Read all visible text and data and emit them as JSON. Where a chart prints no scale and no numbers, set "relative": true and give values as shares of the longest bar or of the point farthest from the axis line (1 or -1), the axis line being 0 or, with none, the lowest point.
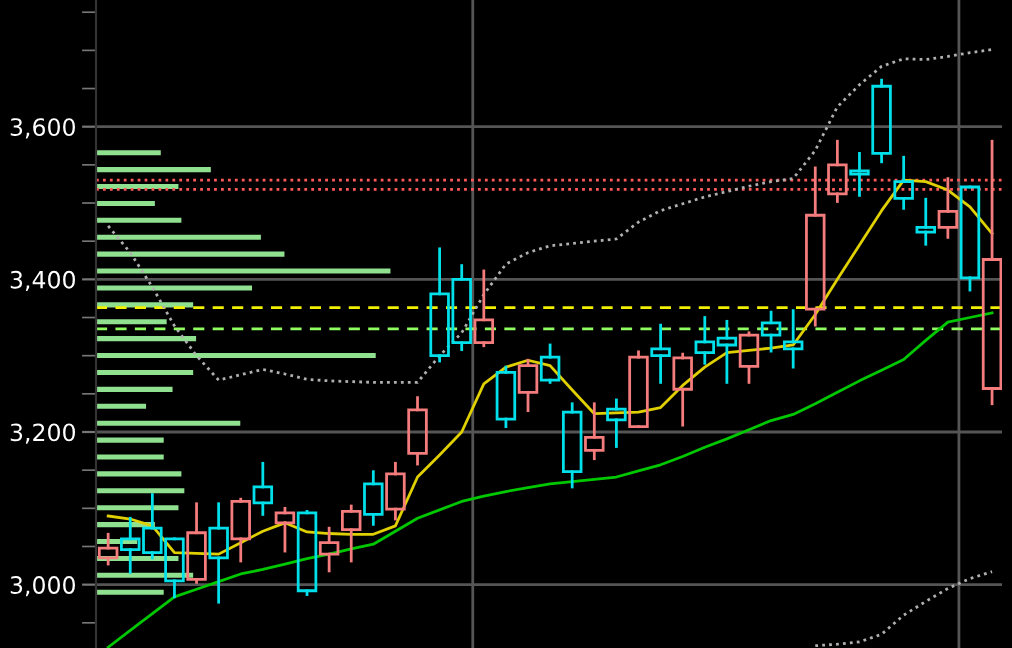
{
  "chart_data": [
    {
      "type": "candlestick",
      "categories": [
        null,
        null,
        null,
        null,
        null,
        null,
        null,
        null,
        null,
        null,
        null,
        null,
        null,
        null,
        null,
        null,
        null,
        null,
        null,
        null,
        null,
        null,
        null,
        null,
        null,
        null,
        null,
        null,
        null,
        null,
        null,
        null,
        null,
        null,
        null,
        null,
        null,
        null,
        null,
        null,
        null
      ],
      "ohlc": [
        [
          3035,
          3066,
          3027,
          3048
        ],
        [
          3060,
          3087,
          3016,
          3046
        ],
        [
          3074,
          3118,
          3035,
          3042
        ],
        [
          3060,
          3060,
          2984,
          3005
        ],
        [
          3007,
          3106,
          3003,
          3068
        ],
        [
          3074,
          3106,
          2977,
          3035
        ],
        [
          3060,
          3112,
          3031,
          3109
        ],
        [
          3128,
          3159,
          3092,
          3107
        ],
        [
          3081,
          3100,
          3044,
          3094
        ],
        [
          3094,
          3096,
          2987,
          2992
        ],
        [
          3040,
          3074,
          3018,
          3055
        ],
        [
          3072,
          3103,
          3031,
          3096
        ],
        [
          3132,
          3148,
          3079,
          3092
        ],
        [
          3099,
          3159,
          3086,
          3145
        ],
        [
          3172,
          3245,
          3158,
          3229
        ],
        [
          3381,
          3440,
          3293,
          3300
        ],
        [
          3400,
          3418,
          3308,
          3317
        ],
        [
          3317,
          3411,
          3313,
          3347
        ],
        [
          3278,
          3285,
          3207,
          3217
        ],
        [
          3252,
          3294,
          3228,
          3287
        ],
        [
          3298,
          3314,
          3265,
          3268
        ],
        [
          3226,
          3237,
          3128,
          3148
        ],
        [
          3176,
          3237,
          3165,
          3193
        ],
        [
          3230,
          3242,
          3181,
          3216
        ],
        [
          3207,
          3305,
          3207,
          3298
        ],
        [
          3309,
          3340,
          3265,
          3300
        ],
        [
          3256,
          3302,
          3209,
          3297
        ],
        [
          3318,
          3350,
          3290,
          3304
        ],
        [
          3323,
          3345,
          3265,
          3314
        ],
        [
          3286,
          3330,
          3265,
          3327
        ],
        [
          3343,
          3357,
          3306,
          3327
        ],
        [
          3318,
          3359,
          3285,
          3309
        ],
        [
          3361,
          3546,
          3340,
          3484
        ],
        [
          3512,
          3581,
          3502,
          3550
        ],
        [
          3542,
          3565,
          3510,
          3538
        ],
        [
          3653,
          3661,
          3554,
          3565
        ],
        [
          3528,
          3560,
          3493,
          3506
        ],
        [
          3468,
          3505,
          3446,
          3462
        ],
        [
          3468,
          3532,
          3455,
          3489
        ],
        [
          3521,
          3521,
          3386,
          3402
        ],
        [
          3257,
          3581,
          3237,
          3426
        ]
      ],
      "colors": [
        "#f47c7c",
        "#00e0ea",
        "#00e0ea",
        "#00e0ea",
        "#f47c7c",
        "#00e0ea",
        "#f47c7c",
        "#00e0ea",
        "#f47c7c",
        "#00e0ea",
        "#f47c7c",
        "#f47c7c",
        "#00e0ea",
        "#f47c7c",
        "#f47c7c",
        "#00e0ea",
        "#00e0ea",
        "#f47c7c",
        "#00e0ea",
        "#f47c7c",
        "#00e0ea",
        "#00e0ea",
        "#f47c7c",
        "#00e0ea",
        "#f47c7c",
        "#00e0ea",
        "#f47c7c",
        "#00e0ea",
        "#00e0ea",
        "#f47c7c",
        "#00e0ea",
        "#00e0ea",
        "#f47c7c",
        "#f47c7c",
        "#00e0ea",
        "#00e0ea",
        "#00e0ea",
        "#00e0ea",
        "#f47c7c",
        "#00e0ea",
        "#f47c7c"
      ],
      "series": [
        {
          "type": "line",
          "color": "#e0d000",
          "line_style": "solid",
          "values": [
            3090,
            3086,
            3077,
            3042,
            3041,
            3040,
            3055,
            3070,
            3081,
            3069,
            3067,
            3066,
            3066,
            3077,
            3141,
            3170,
            3200,
            3263,
            3285,
            3294,
            3287,
            3255,
            3224,
            3225,
            3226,
            3232,
            3261,
            3285,
            3304,
            3307,
            3310,
            3314,
            3354,
            3400,
            3445,
            3490,
            3530,
            3528,
            3517,
            3495,
            3460
          ]
        },
        {
          "type": "line",
          "color": "#00c800",
          "line_style": "solid",
          "values": [
            2918,
            2940,
            2962,
            2984,
            2994,
            3004,
            3014,
            3020,
            3027,
            3034,
            3040,
            3047,
            3053,
            3070,
            3087,
            3098,
            3109,
            3116,
            3122,
            3127,
            3132,
            3135,
            3138,
            3141,
            3149,
            3157,
            3168,
            3180,
            3191,
            3203,
            3215,
            3223,
            3237,
            3252,
            3267,
            3281,
            3295,
            3320,
            3344,
            3350,
            3356
          ]
        },
        {
          "type": "line",
          "color": "#b0b0b0",
          "line_style": "dotted",
          "values": [
            3470,
            3435,
            3390,
            3339,
            3300,
            3268,
            3275,
            3282,
            3276,
            3269,
            3267,
            3266,
            3265,
            3265,
            3265,
            3300,
            3330,
            3380,
            3420,
            3435,
            3444,
            3447,
            3450,
            3453,
            3475,
            3490,
            3499,
            3508,
            3515,
            3522,
            3528,
            3532,
            3569,
            3626,
            3655,
            3679,
            3689,
            3688,
            3692,
            3697,
            3701
          ]
        },
        {
          "type": "line",
          "color": "#b0b0b0",
          "line_style": "dotted",
          "values": [
            null,
            null,
            null,
            null,
            null,
            null,
            null,
            null,
            null,
            null,
            null,
            null,
            null,
            null,
            null,
            null,
            null,
            null,
            null,
            null,
            null,
            null,
            null,
            null,
            null,
            null,
            null,
            null,
            null,
            null,
            null,
            null,
            2920,
            2922,
            2925,
            2935,
            2960,
            2978,
            2995,
            3008,
            3017
          ]
        }
      ],
      "ylim": [
        2917,
        3766
      ],
      "yticks": [
        {
          "value": 2950,
          "label": null
        },
        {
          "value": 3000,
          "label": "3,000"
        },
        {
          "value": 3050,
          "label": null
        },
        {
          "value": 3100,
          "label": null
        },
        {
          "value": 3150,
          "label": null
        },
        {
          "value": 3200,
          "label": "3,200"
        },
        {
          "value": 3250,
          "label": null
        },
        {
          "value": 3300,
          "label": null
        },
        {
          "value": 3350,
          "label": null
        },
        {
          "value": 3400,
          "label": "3,400"
        },
        {
          "value": 3450,
          "label": null
        },
        {
          "value": 3500,
          "label": null
        },
        {
          "value": 3550,
          "label": null
        },
        {
          "value": 3600,
          "label": "3,600"
        },
        {
          "value": 3650,
          "label": null
        },
        {
          "value": 3700,
          "label": null
        },
        {
          "value": 3750,
          "label": null
        }
      ],
      "grid": "y",
      "tick_labels": "y",
      "ref_lines": [
        {
          "axis": "y",
          "value": 3530,
          "color": "#ff5a5a",
          "line_style": "dotted"
        },
        {
          "axis": "y",
          "value": 3518,
          "color": "#ff5a5a",
          "line_style": "dotted"
        },
        {
          "axis": "y",
          "value": 3363,
          "color": "#f0f000",
          "line_style": "dashed"
        },
        {
          "axis": "y",
          "value": 3335,
          "color": "#90ff60",
          "line_style": "dashed"
        }
      ]
    },
    {
      "type": "bar",
      "orientation": "horizontal",
      "relative": true,
      "tick_labels": false,
      "color": "#8fe08f",
      "categories": [
        null,
        null,
        null,
        null,
        null,
        null,
        null,
        null,
        null,
        null,
        null,
        null,
        null,
        null,
        null,
        null,
        null,
        null,
        null,
        null,
        null,
        null,
        null,
        null,
        null,
        null,
        null
      ],
      "values": [
        0.22,
        0.39,
        0.28,
        0.2,
        0.29,
        0.56,
        0.64,
        1,
        0.53,
        0.33,
        0.24,
        0.34,
        0.95,
        0.33,
        0.26,
        0.17,
        0.49,
        0.23,
        0.23,
        0.29,
        0.3,
        0.28,
        0.2,
        0.14,
        0.28,
        0.33,
        0.23
      ]
    }
  ]
}
